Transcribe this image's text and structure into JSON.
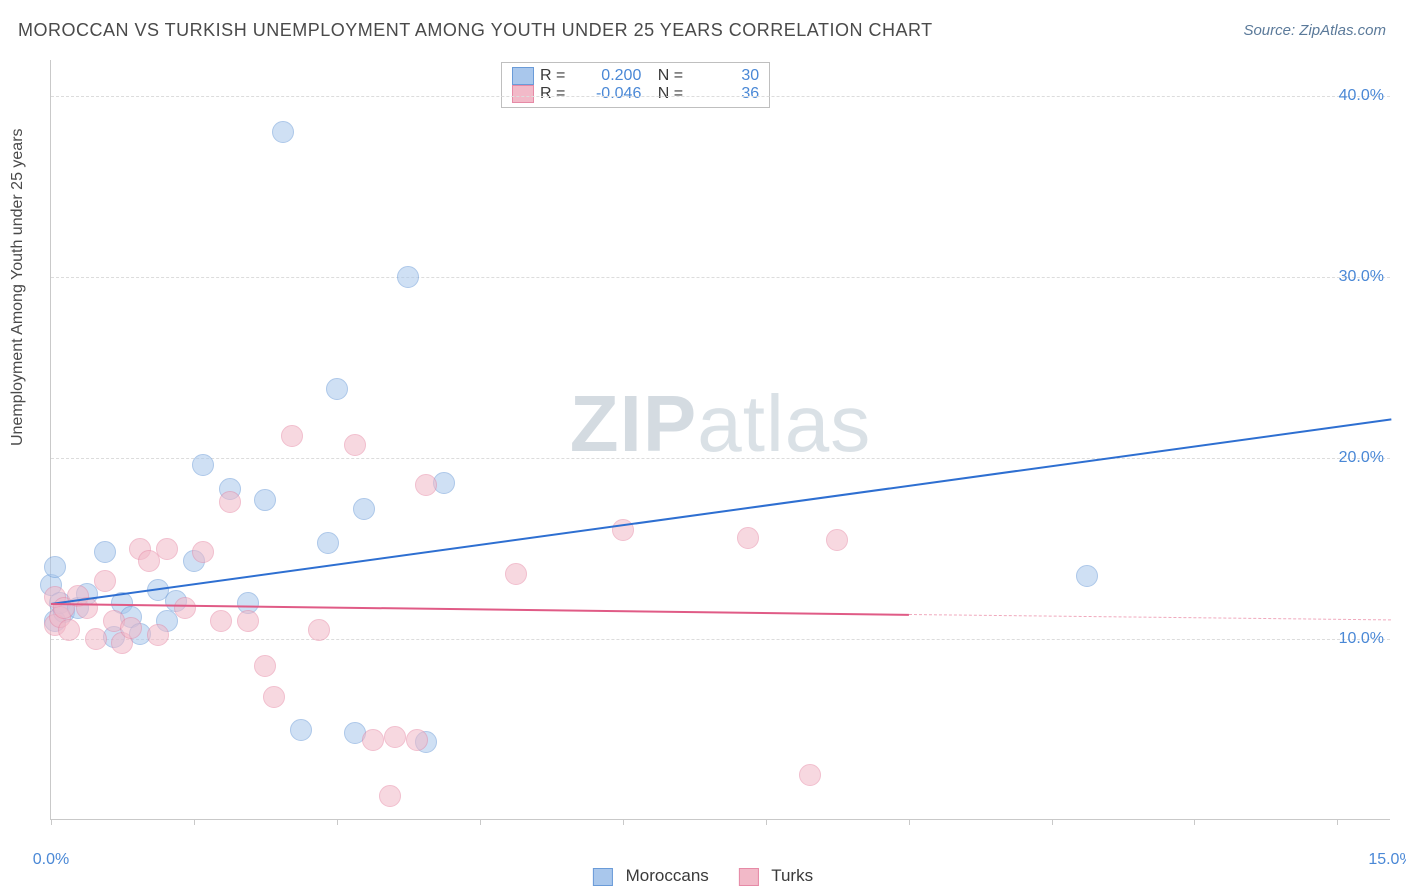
{
  "title": "MOROCCAN VS TURKISH UNEMPLOYMENT AMONG YOUTH UNDER 25 YEARS CORRELATION CHART",
  "source": "Source: ZipAtlas.com",
  "ylabel": "Unemployment Among Youth under 25 years",
  "watermark_prefix": "ZIP",
  "watermark_suffix": "atlas",
  "chart": {
    "type": "scatter",
    "xlim": [
      0,
      15
    ],
    "ylim": [
      0,
      42
    ],
    "xtick_positions": [
      0,
      1.6,
      3.2,
      4.8,
      6.4,
      8.0,
      9.6,
      11.2,
      12.8,
      14.4
    ],
    "xtick_labels": {
      "0": "0.0%",
      "15": "15.0%"
    },
    "ytick_positions": [
      10,
      20,
      30,
      40
    ],
    "ytick_labels": [
      "10.0%",
      "20.0%",
      "30.0%",
      "40.0%"
    ],
    "grid_color": "#dcdcdc",
    "axis_color": "#c9c9c9",
    "background_color": "#ffffff",
    "point_radius": 11,
    "point_opacity": 0.55,
    "series": [
      {
        "name": "Moroccans",
        "color_fill": "#a9c7ec",
        "color_stroke": "#6a9bd8",
        "legend_label": "Moroccans",
        "stats": {
          "R": "0.200",
          "N": "30"
        },
        "trend": {
          "x0": 0,
          "y0": 12.0,
          "x1": 15,
          "y1": 22.2,
          "color": "#2e6fd1",
          "width": 2.5,
          "dash": false
        },
        "points": [
          [
            0.0,
            13.0
          ],
          [
            0.05,
            14.0
          ],
          [
            0.05,
            11.0
          ],
          [
            0.1,
            12.0
          ],
          [
            0.15,
            11.5
          ],
          [
            0.3,
            11.7
          ],
          [
            0.4,
            12.5
          ],
          [
            0.6,
            14.8
          ],
          [
            0.7,
            10.1
          ],
          [
            0.8,
            12.0
          ],
          [
            0.9,
            11.2
          ],
          [
            1.0,
            10.3
          ],
          [
            1.2,
            12.7
          ],
          [
            1.3,
            11.0
          ],
          [
            1.4,
            12.1
          ],
          [
            1.6,
            14.3
          ],
          [
            1.7,
            19.6
          ],
          [
            2.0,
            18.3
          ],
          [
            2.2,
            12.0
          ],
          [
            2.4,
            17.7
          ],
          [
            2.6,
            38.0
          ],
          [
            2.8,
            5.0
          ],
          [
            3.2,
            23.8
          ],
          [
            3.1,
            15.3
          ],
          [
            3.4,
            4.8
          ],
          [
            3.5,
            17.2
          ],
          [
            4.0,
            30.0
          ],
          [
            4.2,
            4.3
          ],
          [
            4.4,
            18.6
          ],
          [
            11.6,
            13.5
          ]
        ]
      },
      {
        "name": "Turks",
        "color_fill": "#f2b9c8",
        "color_stroke": "#e68aa6",
        "legend_label": "Turks",
        "stats": {
          "R": "-0.046",
          "N": "36"
        },
        "trend": {
          "x0": 0,
          "y0": 12.0,
          "x1": 9.6,
          "y1": 11.4,
          "color": "#e05b86",
          "width": 2.5,
          "dash": false
        },
        "trend_ext": {
          "x0": 9.6,
          "y0": 11.4,
          "x1": 15,
          "y1": 11.1,
          "color": "#f0a9bd",
          "width": 1.5,
          "dash": true
        },
        "points": [
          [
            0.05,
            10.8
          ],
          [
            0.05,
            12.3
          ],
          [
            0.1,
            11.2
          ],
          [
            0.15,
            11.7
          ],
          [
            0.2,
            10.5
          ],
          [
            0.3,
            12.4
          ],
          [
            0.4,
            11.7
          ],
          [
            0.5,
            10.0
          ],
          [
            0.6,
            13.2
          ],
          [
            0.7,
            11.0
          ],
          [
            0.8,
            9.8
          ],
          [
            0.9,
            10.6
          ],
          [
            1.0,
            15.0
          ],
          [
            1.1,
            14.3
          ],
          [
            1.2,
            10.2
          ],
          [
            1.3,
            15.0
          ],
          [
            1.5,
            11.7
          ],
          [
            1.7,
            14.8
          ],
          [
            1.9,
            11.0
          ],
          [
            2.0,
            17.6
          ],
          [
            2.2,
            11.0
          ],
          [
            2.4,
            8.5
          ],
          [
            2.5,
            6.8
          ],
          [
            2.7,
            21.2
          ],
          [
            3.0,
            10.5
          ],
          [
            3.4,
            20.7
          ],
          [
            3.6,
            4.4
          ],
          [
            3.8,
            1.3
          ],
          [
            3.85,
            4.6
          ],
          [
            4.1,
            4.4
          ],
          [
            4.2,
            18.5
          ],
          [
            5.2,
            13.6
          ],
          [
            6.4,
            16.0
          ],
          [
            7.8,
            15.6
          ],
          [
            8.5,
            2.5
          ],
          [
            8.8,
            15.5
          ]
        ]
      }
    ]
  },
  "labels": {
    "R": "R =",
    "N": "N ="
  }
}
